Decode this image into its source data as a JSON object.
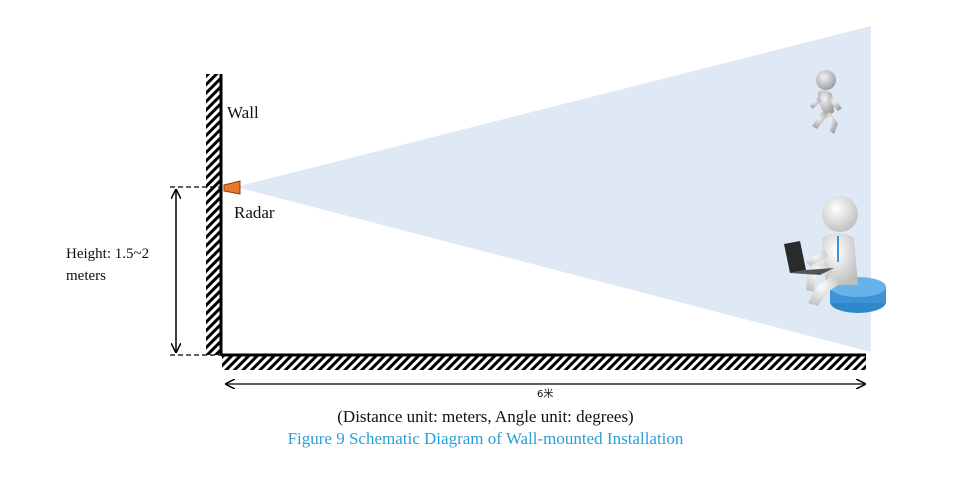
{
  "labels": {
    "wall": "Wall",
    "radar": "Radar",
    "height_line1": "Height: 1.5~2",
    "height_line2": "meters",
    "distance": "6米"
  },
  "caption": {
    "units": "(Distance unit: meters, Angle unit: degrees)",
    "figure": "Figure 9 Schematic Diagram of Wall-mounted Installation"
  },
  "colors": {
    "beam": "#dfe8f5",
    "radar": "#e8792a",
    "seat": "#3d93d6",
    "caption_figure": "#2a9fd6",
    "line": "#000000",
    "figure_body": "#d9d9d9"
  },
  "icons": {
    "walking_person": "walking-person-icon",
    "seated_person": "seated-person-with-laptop-icon"
  }
}
